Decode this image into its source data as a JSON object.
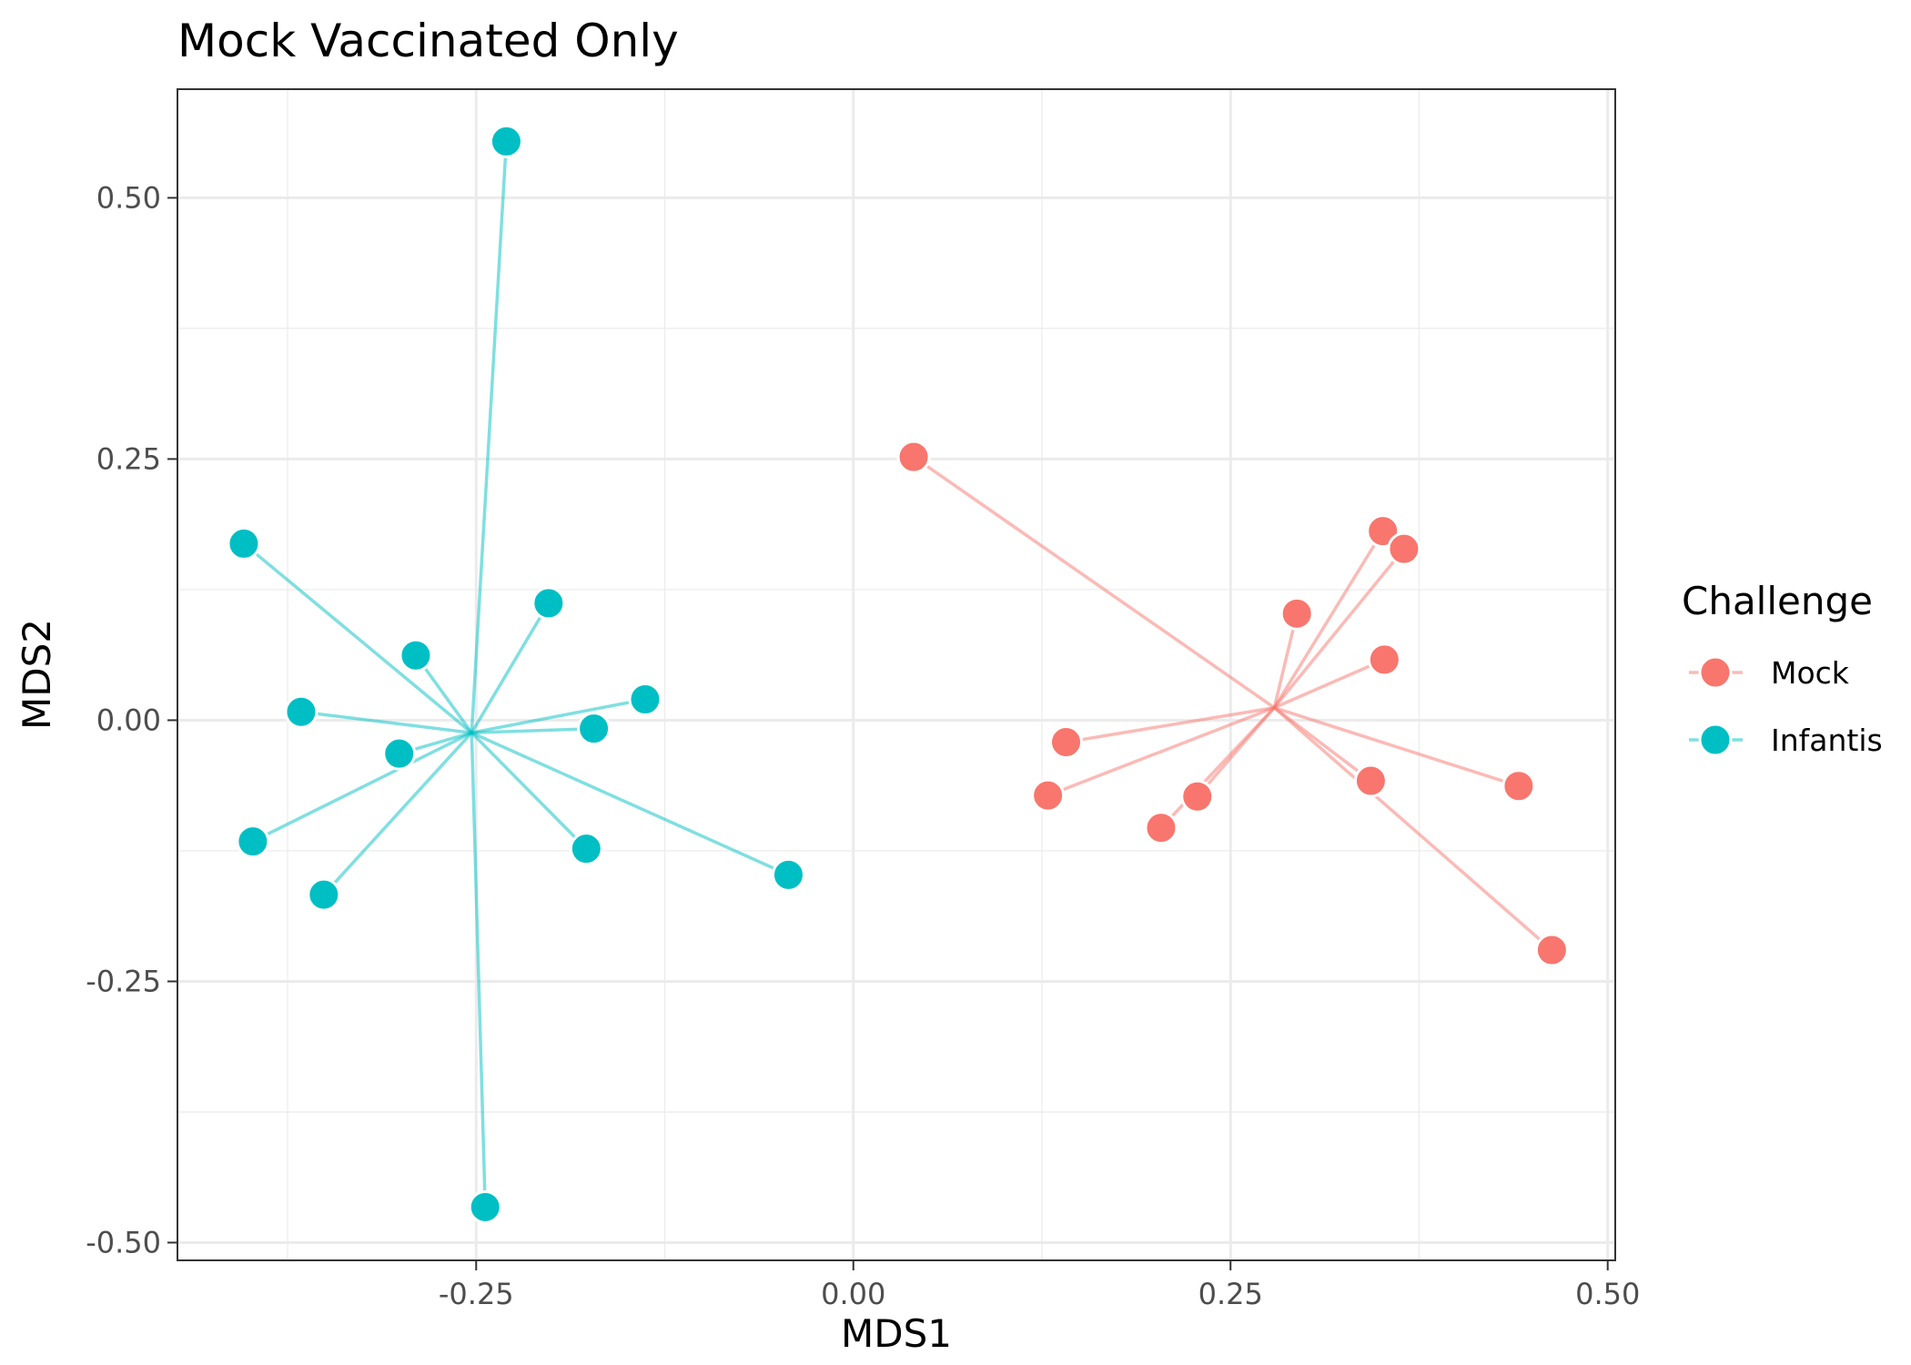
{
  "chart_data": {
    "type": "scatter",
    "title": "Mock Vaccinated Only",
    "xlabel": "MDS1",
    "ylabel": "MDS2",
    "xlim": [
      -0.448,
      0.505
    ],
    "ylim": [
      -0.517,
      0.604
    ],
    "x_ticks": [
      -0.25,
      0.0,
      0.25,
      0.5
    ],
    "x_tick_labels": [
      "-0.25",
      "0.00",
      "0.25",
      "0.50"
    ],
    "y_ticks": [
      -0.5,
      -0.25,
      0.0,
      0.25,
      0.5
    ],
    "y_tick_labels": [
      "-0.50",
      "-0.25",
      "0.00",
      "0.25",
      "0.50"
    ],
    "grid": true,
    "legend": {
      "title": "Challenge",
      "position": "right"
    },
    "series": [
      {
        "name": "Mock",
        "color": "#F8766D",
        "centroid": [
          0.279,
          0.012
        ],
        "points": [
          [
            0.04,
            0.252
          ],
          [
            0.351,
            0.181
          ],
          [
            0.365,
            0.164
          ],
          [
            0.294,
            0.102
          ],
          [
            0.352,
            0.058
          ],
          [
            0.141,
            -0.021
          ],
          [
            0.129,
            -0.072
          ],
          [
            0.228,
            -0.073
          ],
          [
            0.204,
            -0.103
          ],
          [
            0.343,
            -0.058
          ],
          [
            0.441,
            -0.063
          ],
          [
            0.463,
            -0.22
          ]
        ]
      },
      {
        "name": "Infantis",
        "color": "#00BFC4",
        "centroid": [
          -0.253,
          -0.012
        ],
        "points": [
          [
            -0.23,
            0.554
          ],
          [
            -0.404,
            0.169
          ],
          [
            -0.202,
            0.112
          ],
          [
            -0.29,
            0.062
          ],
          [
            -0.366,
            0.008
          ],
          [
            -0.138,
            0.02
          ],
          [
            -0.172,
            -0.008
          ],
          [
            -0.301,
            -0.032
          ],
          [
            -0.398,
            -0.116
          ],
          [
            -0.177,
            -0.123
          ],
          [
            -0.351,
            -0.167
          ],
          [
            -0.043,
            -0.148
          ],
          [
            -0.244,
            -0.466
          ]
        ]
      }
    ]
  }
}
